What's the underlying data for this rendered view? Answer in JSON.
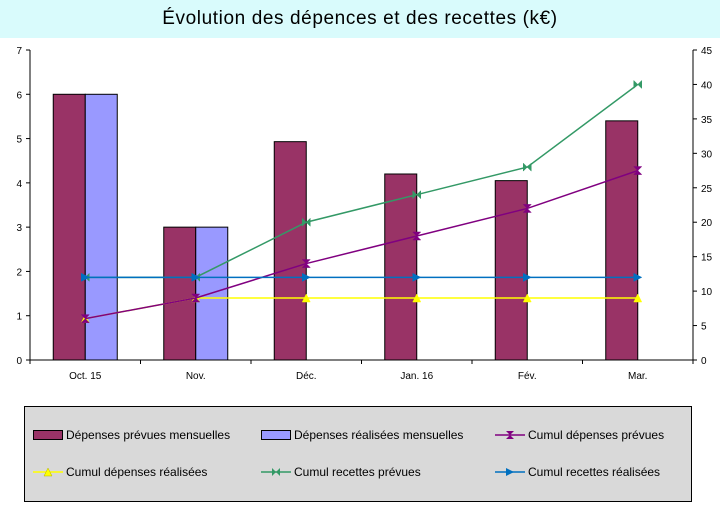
{
  "title": "Évolution des dépences et des recettes (k€)",
  "colors": {
    "prevues_bar": "#993366",
    "realisees_bar": "#9999ff",
    "cumul_dep_prevues": "#800080",
    "cumul_dep_realisees": "#ffff00",
    "cumul_rec_prevues": "#339966",
    "cumul_rec_realisees": "#0070c0",
    "title_bg": "#d9fbfc",
    "legend_bg": "#d9d9d9"
  },
  "chart_data": {
    "type": "bar",
    "categories": [
      "Oct. 15",
      "Nov.",
      "Déc.",
      "Jan. 16",
      "Fév.",
      "Mar."
    ],
    "ylim_left": [
      0,
      7
    ],
    "yticks_left": [
      "0",
      "1",
      "2",
      "3",
      "4",
      "5",
      "6",
      "7"
    ],
    "ylim_right": [
      0,
      45
    ],
    "yticks_right": [
      "0",
      "5",
      "10",
      "15",
      "20",
      "25",
      "30",
      "35",
      "40",
      "45"
    ],
    "legend_position": "bottom",
    "series": [
      {
        "name": "Dépenses prévues mensuelles",
        "type": "bar",
        "axis": "left",
        "values": [
          6.0,
          3.0,
          4.93,
          4.2,
          4.05,
          5.4
        ]
      },
      {
        "name": "Dépenses réalisées mensuelles",
        "type": "bar",
        "axis": "left",
        "values": [
          6.0,
          3.0,
          null,
          null,
          null,
          null
        ]
      },
      {
        "name": "Cumul dépenses prévues",
        "type": "line",
        "axis": "right",
        "marker": "hourglass",
        "values": [
          6,
          9,
          14,
          18,
          22,
          27.5
        ]
      },
      {
        "name": "Cumul dépenses réalisées",
        "type": "line",
        "axis": "right",
        "marker": "triangle",
        "values": [
          6,
          9,
          9,
          9,
          9,
          9
        ]
      },
      {
        "name": "Cumul recettes prévues",
        "type": "line",
        "axis": "right",
        "marker": "bowtie",
        "values": [
          12,
          12,
          20,
          24,
          28,
          40
        ]
      },
      {
        "name": "Cumul recettes réalisées",
        "type": "line",
        "axis": "right",
        "marker": "arrow",
        "values": [
          12,
          12,
          12,
          12,
          12,
          12
        ]
      }
    ]
  },
  "legend": [
    "Dépenses prévues mensuelles",
    "Dépenses réalisées mensuelles",
    "Cumul dépenses prévues",
    "Cumul dépenses réalisées",
    "Cumul recettes prévues",
    "Cumul recettes réalisées"
  ]
}
